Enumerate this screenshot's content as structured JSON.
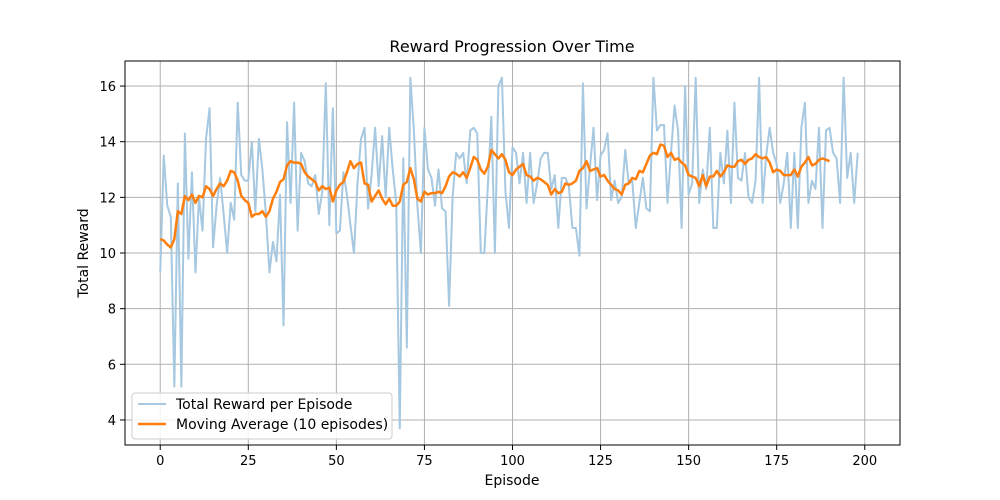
{
  "chart_data": {
    "type": "line",
    "title": "Reward Progression Over Time",
    "xlabel": "Episode",
    "ylabel": "Total Reward",
    "xlim": [
      -10,
      210
    ],
    "ylim": [
      3.1,
      16.9
    ],
    "xticks": [
      0,
      25,
      50,
      75,
      100,
      125,
      150,
      175,
      200
    ],
    "yticks": [
      4,
      6,
      8,
      10,
      12,
      14,
      16
    ],
    "grid": true,
    "legend_position": "lower-left",
    "series": [
      {
        "name": "Total Reward per Episode",
        "color": "#a6c8e0",
        "x_start": 0,
        "values": [
          9.3,
          13.5,
          11.7,
          11.3,
          5.2,
          12.5,
          5.2,
          14.3,
          9.8,
          12.9,
          9.3,
          12.0,
          10.8,
          14.1,
          15.2,
          10.2,
          11.7,
          12.7,
          11.4,
          10.0,
          11.8,
          11.2,
          15.4,
          12.8,
          12.6,
          12.6,
          14.0,
          11.5,
          14.1,
          13.0,
          11.4,
          9.3,
          10.4,
          9.7,
          12.1,
          7.4,
          14.7,
          11.8,
          15.4,
          10.8,
          13.6,
          13.3,
          12.5,
          12.4,
          12.8,
          11.4,
          12.2,
          16.1,
          11.0,
          15.2,
          10.7,
          10.8,
          12.9,
          12.1,
          11.0,
          10.0,
          12.5,
          14.1,
          14.5,
          11.6,
          12.8,
          14.5,
          12.4,
          14.2,
          12.0,
          14.5,
          13.0,
          11.8,
          3.7,
          13.4,
          6.6,
          16.3,
          14.4,
          11.7,
          10.0,
          14.5,
          13.0,
          12.7,
          11.7,
          13.0,
          11.6,
          11.5,
          8.1,
          12.0,
          13.6,
          13.4,
          13.6,
          12.5,
          14.4,
          14.5,
          14.3,
          10.0,
          10.0,
          12.4,
          14.9,
          10.0,
          16.0,
          16.3,
          12.2,
          10.9,
          13.8,
          13.6,
          12.5,
          13.6,
          11.8,
          13.6,
          11.8,
          12.5,
          13.4,
          13.6,
          13.6,
          12.3,
          12.8,
          10.9,
          12.7,
          12.7,
          12.4,
          10.9,
          10.9,
          9.9,
          16.1,
          11.6,
          13.1,
          14.5,
          11.9,
          13.5,
          13.7,
          14.3,
          11.9,
          12.6,
          11.8,
          12.0,
          13.7,
          12.5,
          12.6,
          10.9,
          11.8,
          12.7,
          11.6,
          11.5,
          16.3,
          14.4,
          14.6,
          14.6,
          11.8,
          13.6,
          15.3,
          14.4,
          10.9,
          16.0,
          12.1,
          12.5,
          16.3,
          11.8,
          13.0,
          12.3,
          14.5,
          10.9,
          10.9,
          13.6,
          12.5,
          14.4,
          11.8,
          15.4,
          12.7,
          12.6,
          13.6,
          12.0,
          11.8,
          12.6,
          16.3,
          11.8,
          13.5,
          14.5,
          13.6,
          13.2,
          11.8,
          12.5,
          13.6,
          10.9,
          13.6,
          10.9,
          14.5,
          15.4,
          11.8,
          12.6,
          12.3,
          14.5,
          10.9,
          14.4,
          14.5,
          13.6,
          13.4,
          11.8,
          16.3,
          12.7,
          13.6,
          11.8,
          13.6
        ]
      },
      {
        "name": "Moving Average (10 episodes)",
        "color": "#ff7f0e",
        "x_start": 0,
        "values": [
          10.5,
          10.45,
          10.3,
          10.2,
          10.5,
          11.5,
          11.4,
          12.05,
          11.9,
          12.1,
          11.8,
          12.05,
          12.0,
          12.4,
          12.3,
          12.05,
          12.3,
          12.5,
          12.4,
          12.6,
          12.95,
          12.9,
          12.6,
          12.05,
          11.9,
          11.8,
          11.3,
          11.4,
          11.4,
          11.5,
          11.3,
          11.5,
          11.95,
          12.2,
          12.55,
          12.65,
          13.15,
          13.3,
          13.25,
          13.25,
          13.2,
          12.9,
          12.75,
          12.65,
          12.55,
          12.25,
          12.4,
          12.3,
          12.35,
          11.85,
          12.25,
          12.45,
          12.55,
          12.9,
          13.3,
          13.05,
          13.2,
          13.25,
          12.5,
          12.45,
          11.85,
          12.05,
          12.25,
          11.95,
          11.75,
          11.95,
          11.7,
          11.7,
          11.85,
          12.45,
          12.55,
          13.05,
          12.65,
          11.95,
          11.85,
          12.2,
          12.1,
          12.15,
          12.15,
          12.2,
          12.15,
          12.4,
          12.75,
          12.9,
          12.85,
          12.75,
          12.9,
          12.7,
          13.05,
          13.45,
          13.35,
          13.0,
          12.85,
          13.1,
          13.7,
          13.55,
          13.4,
          13.55,
          13.35,
          12.9,
          12.8,
          13.0,
          13.1,
          13.2,
          12.8,
          12.75,
          12.6,
          12.7,
          12.65,
          12.55,
          12.45,
          12.1,
          12.3,
          12.15,
          12.2,
          12.5,
          12.45,
          12.5,
          12.6,
          12.95,
          13.05,
          13.3,
          12.95,
          13.0,
          13.05,
          12.75,
          12.8,
          12.6,
          12.45,
          12.3,
          12.25,
          12.1,
          12.45,
          12.5,
          12.7,
          12.65,
          12.95,
          12.9,
          13.2,
          13.5,
          13.6,
          13.55,
          13.9,
          13.85,
          13.45,
          13.6,
          13.35,
          13.4,
          13.25,
          13.15,
          12.8,
          12.75,
          12.7,
          12.4,
          12.8,
          12.4,
          12.75,
          12.75,
          12.95,
          12.75,
          12.9,
          13.15,
          13.1,
          13.1,
          13.3,
          13.35,
          13.2,
          13.35,
          13.4,
          13.55,
          13.45,
          13.4,
          13.45,
          13.25,
          12.9,
          13.0,
          12.95,
          12.8,
          12.8,
          12.8,
          13.0,
          12.75,
          13.1,
          13.25,
          13.45,
          13.15,
          13.2,
          13.35,
          13.4,
          13.35,
          13.3
        ]
      }
    ]
  }
}
